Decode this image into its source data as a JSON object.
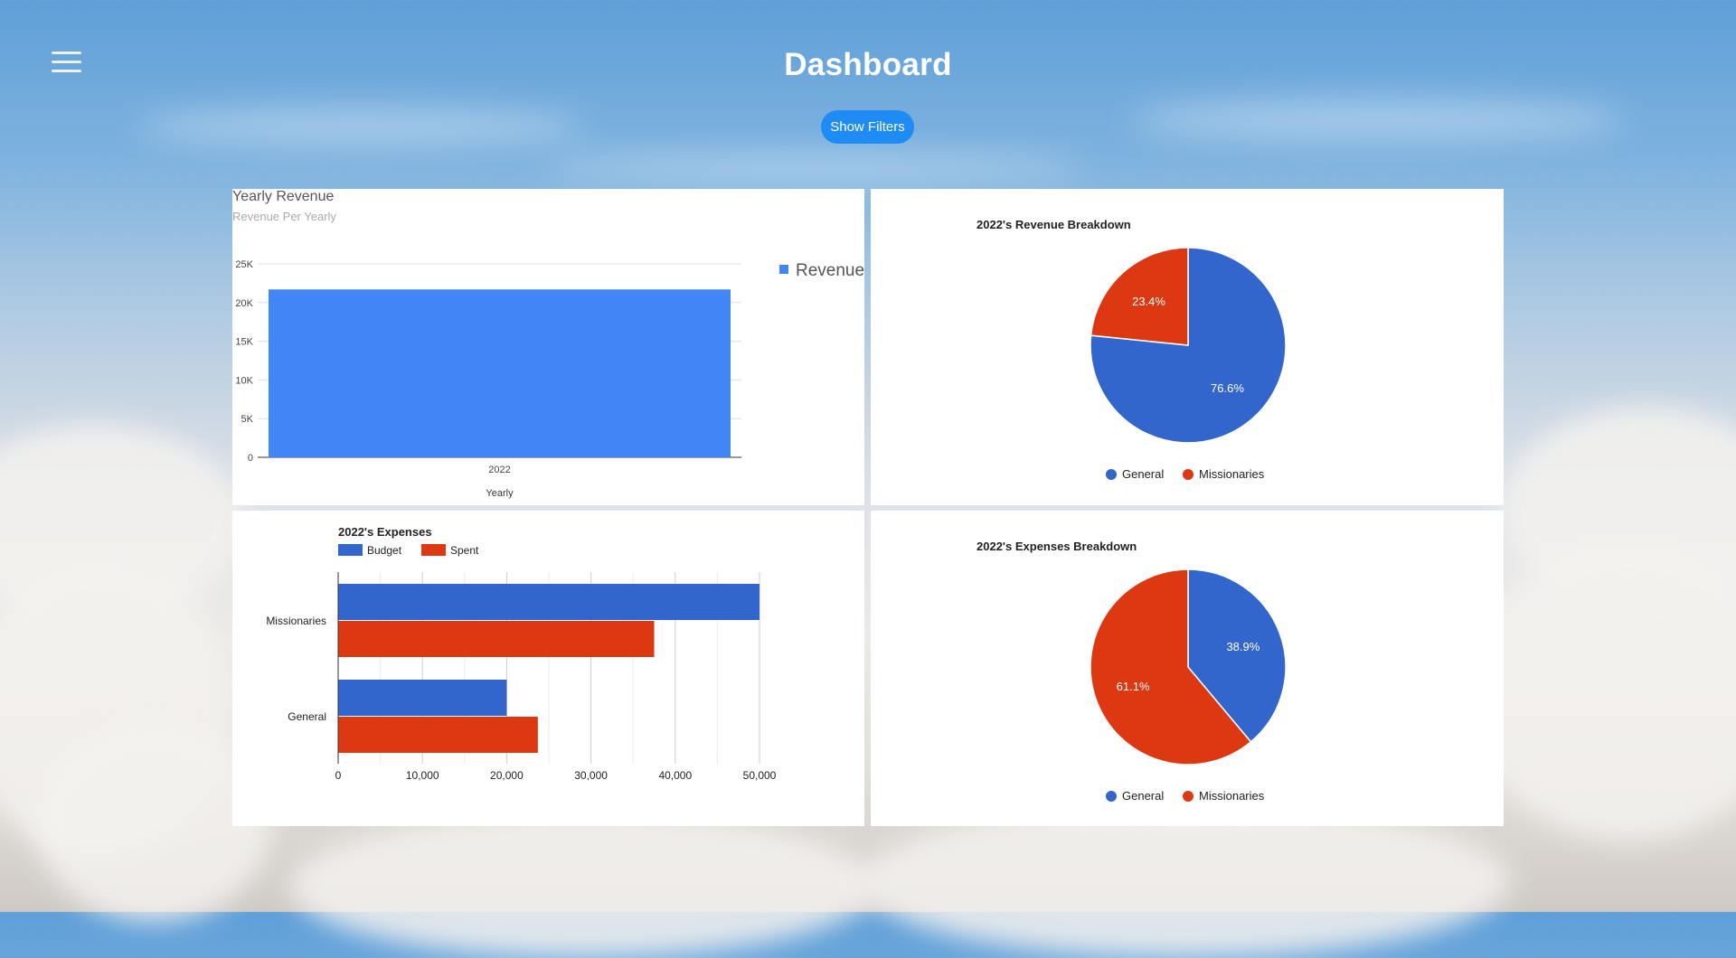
{
  "header": {
    "title": "Dashboard",
    "filters_label": "Show Filters"
  },
  "colors": {
    "revenue": "#4285f4",
    "blue": "#3366cc",
    "red": "#dc3912",
    "button": "#1f8bf5"
  },
  "chart_data": [
    {
      "type": "bar",
      "title": "Yearly Revenue",
      "subtitle": "Revenue Per Yearly",
      "categories": [
        "2022"
      ],
      "series": [
        {
          "name": "Revenue",
          "values": [
            21700
          ]
        }
      ],
      "xlabel": "Yearly",
      "ylabel": "",
      "ylim": [
        0,
        25000
      ],
      "yticks": [
        0,
        5000,
        10000,
        15000,
        20000,
        25000
      ],
      "ytick_labels": [
        "0",
        "5K",
        "10K",
        "15K",
        "20K",
        "25K"
      ],
      "legend": "right"
    },
    {
      "type": "pie",
      "title": "2022's Revenue Breakdown",
      "labels": [
        "General",
        "Missionaries"
      ],
      "values": [
        76.6,
        23.4
      ],
      "value_labels": [
        "76.6%",
        "23.4%"
      ],
      "legend": "bottom"
    },
    {
      "type": "bar",
      "orientation": "horizontal",
      "title": "2022's Expenses",
      "categories": [
        "Missionaries",
        "General"
      ],
      "series": [
        {
          "name": "Budget",
          "values": [
            50000,
            20000
          ]
        },
        {
          "name": "Spent",
          "values": [
            37500,
            23700
          ]
        }
      ],
      "xlim": [
        0,
        50000
      ],
      "xticks": [
        0,
        10000,
        20000,
        30000,
        40000,
        50000
      ],
      "xtick_labels": [
        "0",
        "10,000",
        "20,000",
        "30,000",
        "40,000",
        "50,000"
      ],
      "legend": "top"
    },
    {
      "type": "pie",
      "title": "2022's Expenses Breakdown",
      "labels": [
        "General",
        "Missionaries"
      ],
      "values": [
        38.9,
        61.1
      ],
      "value_labels": [
        "38.9%",
        "61.1%"
      ],
      "legend": "bottom"
    }
  ]
}
